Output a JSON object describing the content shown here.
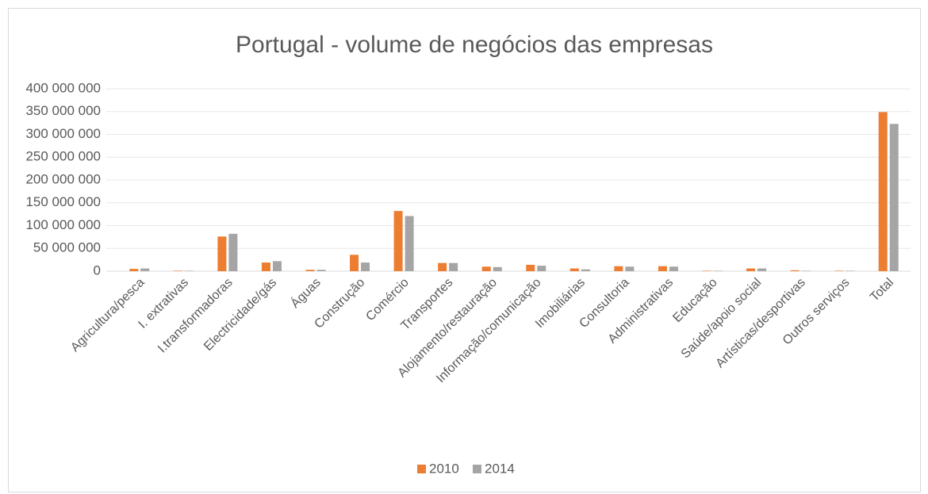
{
  "chart_data": {
    "type": "bar",
    "title": "Portugal - volume de negócios das empresas",
    "categories": [
      "Agricultura/pesca",
      "I. extrativas",
      "I.transformadoras",
      "Electricidade/gás",
      "Águas",
      "Construção",
      "Comércio",
      "Transportes",
      "Alojamento/restauração",
      "Informação/comunicação",
      "Imobiliárias",
      "Consultoria",
      "Administrativas",
      "Educação",
      "Saúde/apoio social",
      "Artísticas/desportivas",
      "Outros serviços",
      "Total"
    ],
    "series": [
      {
        "name": "2010",
        "color": "#ed7d31",
        "values": [
          5000000,
          1000000,
          76000000,
          19000000,
          3000000,
          36000000,
          132000000,
          18000000,
          10000000,
          14000000,
          6000000,
          11000000,
          11000000,
          1000000,
          6000000,
          2000000,
          1000000,
          349000000
        ]
      },
      {
        "name": "2014",
        "color": "#a5a5a5",
        "values": [
          6000000,
          1000000,
          82000000,
          22000000,
          3000000,
          19000000,
          121000000,
          18000000,
          9000000,
          12000000,
          4000000,
          10000000,
          10000000,
          1000000,
          6000000,
          1000000,
          1000000,
          323000000
        ]
      }
    ],
    "ylim": [
      0,
      400000000
    ],
    "yticks": [
      0,
      {
        "value": 50000000,
        "label": "50 000 000"
      },
      {
        "value": 100000000,
        "label": "100 000 000"
      },
      {
        "value": 150000000,
        "label": "150 000 000"
      },
      {
        "value": 200000000,
        "label": "200 000 000"
      },
      {
        "value": 250000000,
        "label": "250 000 000"
      },
      {
        "value": 300000000,
        "label": "300 000 000"
      },
      {
        "value": 350000000,
        "label": "350 000 000"
      },
      {
        "value": 400000000,
        "label": "400 000 000"
      }
    ],
    "grid": true,
    "legend": "bottom"
  }
}
